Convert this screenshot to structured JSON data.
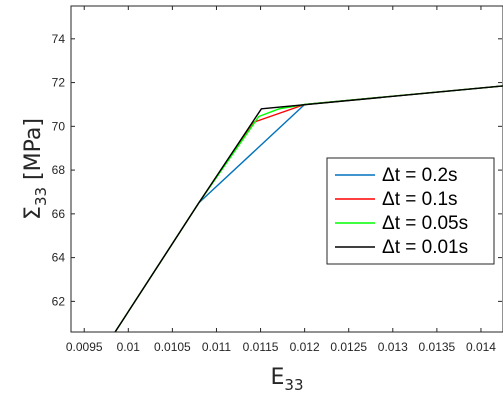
{
  "chart_data": {
    "type": "line",
    "title": "",
    "xlabel": {
      "main": "E",
      "sub": "33"
    },
    "ylabel": {
      "main": "Σ",
      "sub": "33",
      "unit": " [MPa]"
    },
    "xlim": [
      0.00935,
      0.01425
    ],
    "ylim": [
      60.6,
      75.5
    ],
    "xticks": [
      0.0095,
      0.01,
      0.0105,
      0.011,
      0.0115,
      0.012,
      0.0125,
      0.013,
      0.0135,
      0.014
    ],
    "xtick_labels": [
      "0.0095",
      "0.01",
      "0.0105",
      "0.011",
      "0.0115",
      "0.012",
      "0.0125",
      "0.013",
      "0.0135",
      "0.014"
    ],
    "yticks": [
      62,
      64,
      66,
      68,
      70,
      72,
      74
    ],
    "ytick_labels": [
      "62",
      "64",
      "66",
      "68",
      "70",
      "72",
      "74"
    ],
    "grid": false,
    "legend_position": "right",
    "series": [
      {
        "name": "Δt = 0.2s",
        "color": "#0072bd",
        "x": [
          0.00985,
          0.0108,
          0.012,
          0.01425
        ],
        "y": [
          60.6,
          66.5,
          71.0,
          71.85
        ]
      },
      {
        "name": "Δt = 0.1s",
        "color": "#ff0000",
        "x": [
          0.00985,
          0.0108,
          0.01143,
          0.012,
          0.01425
        ],
        "y": [
          60.6,
          66.5,
          70.2,
          71.0,
          71.85
        ]
      },
      {
        "name": "Δt = 0.05s",
        "color": "#00ff00",
        "x": [
          0.00985,
          0.0108,
          0.01148,
          0.01171,
          0.012,
          0.01425
        ],
        "y": [
          60.6,
          66.5,
          70.45,
          70.8,
          71.0,
          71.85
        ]
      },
      {
        "name": "Δt = 0.01s",
        "color": "#000000",
        "x": [
          0.00985,
          0.0108,
          0.01151,
          0.01425
        ],
        "y": [
          60.6,
          66.5,
          70.8,
          71.85
        ]
      }
    ]
  }
}
